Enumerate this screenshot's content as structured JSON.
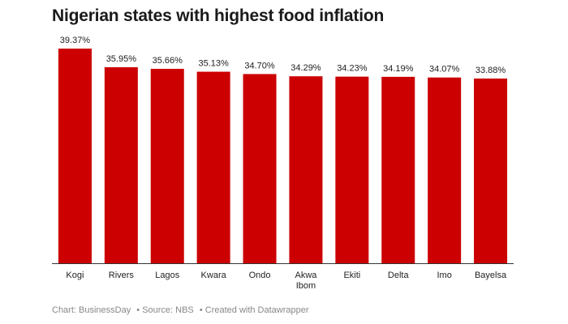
{
  "chart_data": {
    "type": "bar",
    "title": "Nigerian states with highest food inflation",
    "categories": [
      "Kogi",
      "Rivers",
      "Lagos",
      "Kwara",
      "Ondo",
      "Akwa Ibom",
      "Ekiti",
      "Delta",
      "Imo",
      "Bayelsa"
    ],
    "category_lines": [
      [
        "Kogi"
      ],
      [
        "Rivers"
      ],
      [
        "Lagos"
      ],
      [
        "Kwara"
      ],
      [
        "Ondo"
      ],
      [
        "Akwa",
        "Ibom"
      ],
      [
        "Ekiti"
      ],
      [
        "Delta"
      ],
      [
        "Imo"
      ],
      [
        "Bayelsa"
      ]
    ],
    "values": [
      39.37,
      35.95,
      35.66,
      35.13,
      34.7,
      34.29,
      34.23,
      34.19,
      34.07,
      33.88
    ],
    "value_labels": [
      "39.37%",
      "35.95%",
      "35.66%",
      "35.13%",
      "34.70%",
      "34.29%",
      "34.23%",
      "34.19%",
      "34.07%",
      "33.88%"
    ],
    "ylim": [
      0,
      39.37
    ],
    "xlabel": "",
    "ylabel": "",
    "grid": false,
    "legend": "none",
    "bar_color": "#cc0000"
  },
  "footer": {
    "chart_credit": "Chart: BusinessDay",
    "source": "• Source: NBS",
    "created_with": "• Created with Datawrapper"
  }
}
